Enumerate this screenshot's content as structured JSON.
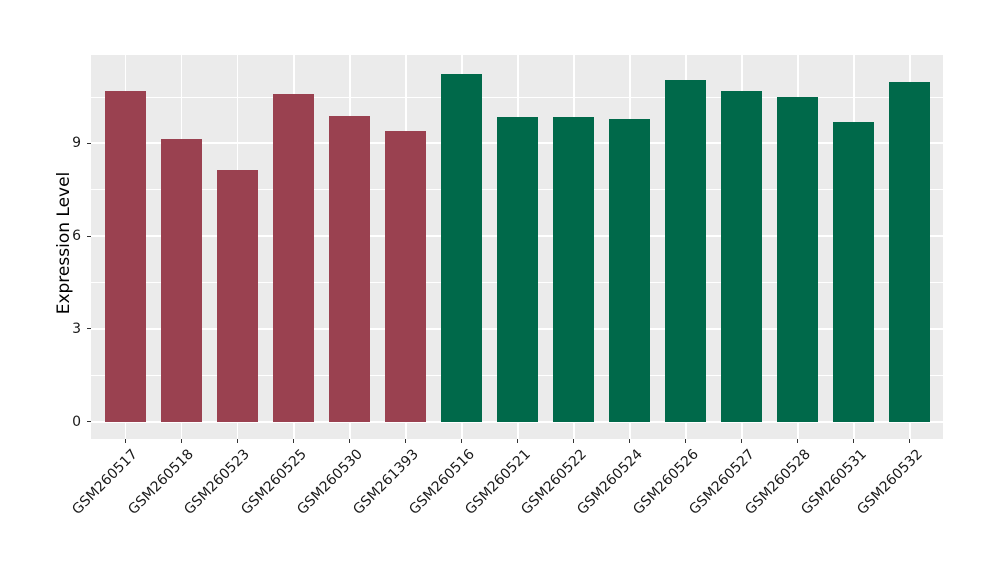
{
  "figure": {
    "background": "#FFFFFF",
    "panel_background": "#EBEBEB",
    "gridline_color": "#FFFFFF",
    "tick_color": "#333333"
  },
  "chart_data": {
    "type": "bar",
    "title": "",
    "xlabel": "",
    "ylabel": "Expression Level",
    "categories": [
      "GSM260517",
      "GSM260518",
      "GSM260523",
      "GSM260525",
      "GSM260530",
      "GSM261393",
      "GSM260516",
      "GSM260521",
      "GSM260522",
      "GSM260524",
      "GSM260526",
      "GSM260527",
      "GSM260528",
      "GSM260531",
      "GSM260532"
    ],
    "values": [
      10.7,
      9.15,
      8.15,
      10.6,
      9.9,
      9.4,
      11.25,
      9.85,
      9.85,
      9.8,
      11.05,
      10.7,
      10.5,
      9.7,
      11.0
    ],
    "groups": [
      "group1",
      "group1",
      "group1",
      "group1",
      "group1",
      "group1",
      "group2",
      "group2",
      "group2",
      "group2",
      "group2",
      "group2",
      "group2",
      "group2",
      "group2"
    ],
    "group_colors": {
      "group1": "#9A4150",
      "group2": "#00694A"
    },
    "ytick_labels": [
      "0",
      "3",
      "6",
      "9"
    ],
    "yticks": [
      0,
      3,
      6,
      9
    ],
    "yticks_minor": [
      1.5,
      4.5,
      7.5,
      10.5
    ],
    "ylim": [
      -0.56,
      11.86
    ],
    "grid": "major-and-minor-horizontal-plus-vertical-at-categories",
    "legend": "none"
  }
}
